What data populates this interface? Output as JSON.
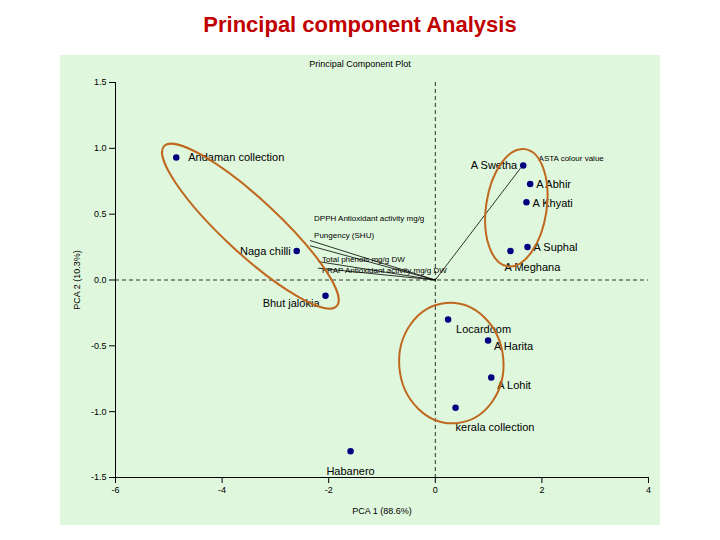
{
  "chart_data": {
    "type": "scatter",
    "title": "Principal component Analysis",
    "subtitle": "Principal Component Plot",
    "x_label": "PCA 1 (88.6%)",
    "y_label": "PCA 2 (10.3%)",
    "labels": [
      "Andaman collection",
      "A Swetha",
      "A Abhir",
      "A Khyati",
      "A Suphal",
      "A Meghana",
      "Naga chilli",
      "Bhut jalokia",
      "Locardoom",
      "A Harita",
      "A Lohit",
      "kerala collection",
      "Habanero"
    ],
    "x": [
      -4.86,
      1.65,
      1.78,
      1.71,
      1.73,
      1.41,
      -2.6,
      -2.06,
      0.24,
      0.99,
      1.05,
      0.38,
      -1.59
    ],
    "y": [
      0.93,
      0.87,
      0.73,
      0.59,
      0.25,
      0.22,
      0.22,
      -0.12,
      -0.3,
      -0.46,
      -0.74,
      -0.97,
      -1.3
    ],
    "color": "#000080",
    "vectors": {
      "names": [
        "ASTA colour value",
        "DPPH Antioxidant activity mg/g",
        "Pungency (SHU)",
        "Total phenols mg/g DW",
        "FRAP Antioxidant activity mg/g DW"
      ],
      "x": [
        1.6,
        -2.35,
        -2.35,
        -2.2,
        -2.2
      ],
      "y": [
        0.85,
        0.3,
        0.26,
        0.14,
        0.09
      ]
    },
    "xlim": [
      -6,
      4
    ],
    "xticks": [
      -6,
      -4,
      -2,
      0,
      2,
      4
    ],
    "ylim": [
      -1.5,
      1.5
    ],
    "yticks": [
      -1.5,
      {
        "value": -1,
        "label": "-1.0"
      },
      -0.5,
      {
        "value": 0,
        "label": "0.0"
      },
      0.5,
      {
        "value": 1,
        "label": "1.0"
      },
      1.5
    ],
    "grid": false
  }
}
